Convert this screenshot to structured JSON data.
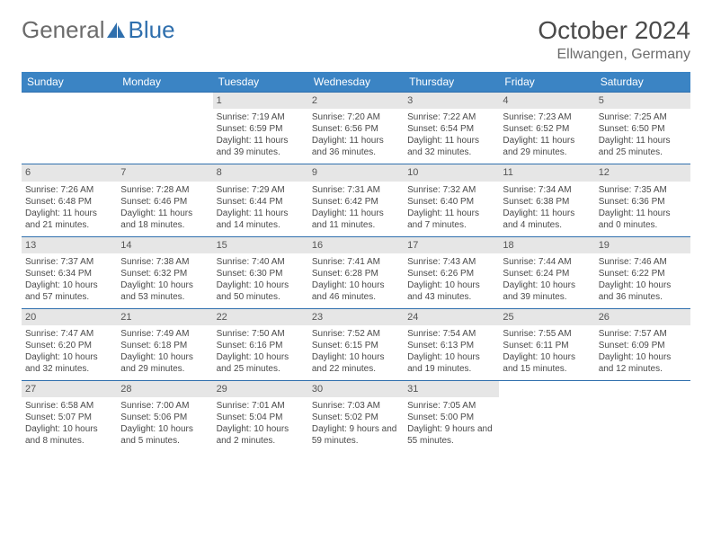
{
  "brand": {
    "part1": "General",
    "part2": "Blue"
  },
  "title": "October 2024",
  "location": "Ellwangen, Germany",
  "colors": {
    "header_bg": "#3b84c4",
    "header_text": "#ffffff",
    "rule": "#2f6fad",
    "daynum_bg": "#e6e6e6",
    "body_text": "#4a4a4a",
    "brand_gray": "#6b6b6b",
    "brand_blue": "#2f6fad",
    "page_bg": "#ffffff"
  },
  "typography": {
    "title_fontsize": 28,
    "location_fontsize": 16,
    "dow_fontsize": 12,
    "daynum_fontsize": 11,
    "body_fontsize": 10
  },
  "dow": [
    "Sunday",
    "Monday",
    "Tuesday",
    "Wednesday",
    "Thursday",
    "Friday",
    "Saturday"
  ],
  "weeks": [
    [
      null,
      null,
      {
        "n": "1",
        "sr": "Sunrise: 7:19 AM",
        "ss": "Sunset: 6:59 PM",
        "dl": "Daylight: 11 hours and 39 minutes."
      },
      {
        "n": "2",
        "sr": "Sunrise: 7:20 AM",
        "ss": "Sunset: 6:56 PM",
        "dl": "Daylight: 11 hours and 36 minutes."
      },
      {
        "n": "3",
        "sr": "Sunrise: 7:22 AM",
        "ss": "Sunset: 6:54 PM",
        "dl": "Daylight: 11 hours and 32 minutes."
      },
      {
        "n": "4",
        "sr": "Sunrise: 7:23 AM",
        "ss": "Sunset: 6:52 PM",
        "dl": "Daylight: 11 hours and 29 minutes."
      },
      {
        "n": "5",
        "sr": "Sunrise: 7:25 AM",
        "ss": "Sunset: 6:50 PM",
        "dl": "Daylight: 11 hours and 25 minutes."
      }
    ],
    [
      {
        "n": "6",
        "sr": "Sunrise: 7:26 AM",
        "ss": "Sunset: 6:48 PM",
        "dl": "Daylight: 11 hours and 21 minutes."
      },
      {
        "n": "7",
        "sr": "Sunrise: 7:28 AM",
        "ss": "Sunset: 6:46 PM",
        "dl": "Daylight: 11 hours and 18 minutes."
      },
      {
        "n": "8",
        "sr": "Sunrise: 7:29 AM",
        "ss": "Sunset: 6:44 PM",
        "dl": "Daylight: 11 hours and 14 minutes."
      },
      {
        "n": "9",
        "sr": "Sunrise: 7:31 AM",
        "ss": "Sunset: 6:42 PM",
        "dl": "Daylight: 11 hours and 11 minutes."
      },
      {
        "n": "10",
        "sr": "Sunrise: 7:32 AM",
        "ss": "Sunset: 6:40 PM",
        "dl": "Daylight: 11 hours and 7 minutes."
      },
      {
        "n": "11",
        "sr": "Sunrise: 7:34 AM",
        "ss": "Sunset: 6:38 PM",
        "dl": "Daylight: 11 hours and 4 minutes."
      },
      {
        "n": "12",
        "sr": "Sunrise: 7:35 AM",
        "ss": "Sunset: 6:36 PM",
        "dl": "Daylight: 11 hours and 0 minutes."
      }
    ],
    [
      {
        "n": "13",
        "sr": "Sunrise: 7:37 AM",
        "ss": "Sunset: 6:34 PM",
        "dl": "Daylight: 10 hours and 57 minutes."
      },
      {
        "n": "14",
        "sr": "Sunrise: 7:38 AM",
        "ss": "Sunset: 6:32 PM",
        "dl": "Daylight: 10 hours and 53 minutes."
      },
      {
        "n": "15",
        "sr": "Sunrise: 7:40 AM",
        "ss": "Sunset: 6:30 PM",
        "dl": "Daylight: 10 hours and 50 minutes."
      },
      {
        "n": "16",
        "sr": "Sunrise: 7:41 AM",
        "ss": "Sunset: 6:28 PM",
        "dl": "Daylight: 10 hours and 46 minutes."
      },
      {
        "n": "17",
        "sr": "Sunrise: 7:43 AM",
        "ss": "Sunset: 6:26 PM",
        "dl": "Daylight: 10 hours and 43 minutes."
      },
      {
        "n": "18",
        "sr": "Sunrise: 7:44 AM",
        "ss": "Sunset: 6:24 PM",
        "dl": "Daylight: 10 hours and 39 minutes."
      },
      {
        "n": "19",
        "sr": "Sunrise: 7:46 AM",
        "ss": "Sunset: 6:22 PM",
        "dl": "Daylight: 10 hours and 36 minutes."
      }
    ],
    [
      {
        "n": "20",
        "sr": "Sunrise: 7:47 AM",
        "ss": "Sunset: 6:20 PM",
        "dl": "Daylight: 10 hours and 32 minutes."
      },
      {
        "n": "21",
        "sr": "Sunrise: 7:49 AM",
        "ss": "Sunset: 6:18 PM",
        "dl": "Daylight: 10 hours and 29 minutes."
      },
      {
        "n": "22",
        "sr": "Sunrise: 7:50 AM",
        "ss": "Sunset: 6:16 PM",
        "dl": "Daylight: 10 hours and 25 minutes."
      },
      {
        "n": "23",
        "sr": "Sunrise: 7:52 AM",
        "ss": "Sunset: 6:15 PM",
        "dl": "Daylight: 10 hours and 22 minutes."
      },
      {
        "n": "24",
        "sr": "Sunrise: 7:54 AM",
        "ss": "Sunset: 6:13 PM",
        "dl": "Daylight: 10 hours and 19 minutes."
      },
      {
        "n": "25",
        "sr": "Sunrise: 7:55 AM",
        "ss": "Sunset: 6:11 PM",
        "dl": "Daylight: 10 hours and 15 minutes."
      },
      {
        "n": "26",
        "sr": "Sunrise: 7:57 AM",
        "ss": "Sunset: 6:09 PM",
        "dl": "Daylight: 10 hours and 12 minutes."
      }
    ],
    [
      {
        "n": "27",
        "sr": "Sunrise: 6:58 AM",
        "ss": "Sunset: 5:07 PM",
        "dl": "Daylight: 10 hours and 8 minutes."
      },
      {
        "n": "28",
        "sr": "Sunrise: 7:00 AM",
        "ss": "Sunset: 5:06 PM",
        "dl": "Daylight: 10 hours and 5 minutes."
      },
      {
        "n": "29",
        "sr": "Sunrise: 7:01 AM",
        "ss": "Sunset: 5:04 PM",
        "dl": "Daylight: 10 hours and 2 minutes."
      },
      {
        "n": "30",
        "sr": "Sunrise: 7:03 AM",
        "ss": "Sunset: 5:02 PM",
        "dl": "Daylight: 9 hours and 59 minutes."
      },
      {
        "n": "31",
        "sr": "Sunrise: 7:05 AM",
        "ss": "Sunset: 5:00 PM",
        "dl": "Daylight: 9 hours and 55 minutes."
      },
      null,
      null
    ]
  ]
}
